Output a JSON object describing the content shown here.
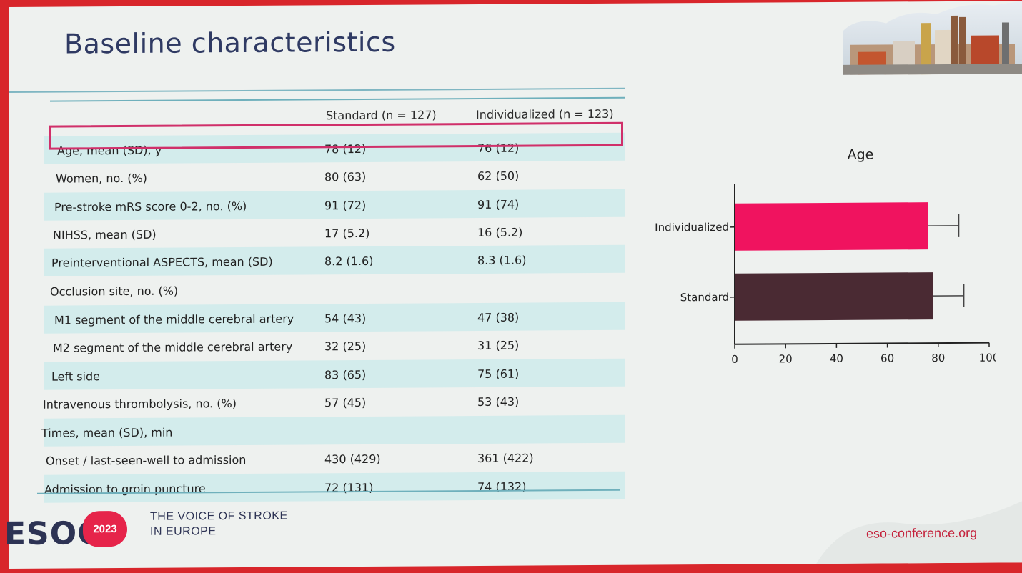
{
  "slide": {
    "title": "Baseline characteristics"
  },
  "table": {
    "headers": [
      "",
      "Standard (n = 127)",
      "Individualized (n = 123)"
    ],
    "rows": [
      {
        "label": "Age, mean (SD), y",
        "standard": "78 (12)",
        "individualized": "76 (12)",
        "shaded": true,
        "highlighted": true
      },
      {
        "label": "Women, no. (%)",
        "standard": "80 (63)",
        "individualized": "62 (50)",
        "shaded": false
      },
      {
        "label": "Pre-stroke mRS score 0-2, no. (%)",
        "standard": "91 (72)",
        "individualized": "91 (74)",
        "shaded": true
      },
      {
        "label": "NIHSS, mean (SD)",
        "standard": "17 (5.2)",
        "individualized": "16 (5.2)",
        "shaded": false
      },
      {
        "label": "Preinterventional ASPECTS, mean (SD)",
        "standard": "8.2 (1.6)",
        "individualized": "8.3 (1.6)",
        "shaded": true
      },
      {
        "label": "Occlusion site, no. (%)",
        "standard": "",
        "individualized": "",
        "shaded": false
      },
      {
        "label": "M1 segment of the middle cerebral artery",
        "standard": "54 (43)",
        "individualized": "47 (38)",
        "shaded": true
      },
      {
        "label": "M2 segment of the middle cerebral artery",
        "standard": "32 (25)",
        "individualized": "31 (25)",
        "shaded": false
      },
      {
        "label": "Left side",
        "standard": "83 (65)",
        "individualized": "75 (61)",
        "shaded": true
      },
      {
        "label": "Intravenous thrombolysis, no. (%)",
        "standard": "57 (45)",
        "individualized": "53 (43)",
        "shaded": false
      },
      {
        "label": "Times, mean (SD), min",
        "standard": "",
        "individualized": "",
        "shaded": true
      },
      {
        "label": "Onset / last-seen-well to admission",
        "standard": "430 (429)",
        "individualized": "361 (422)",
        "shaded": false
      },
      {
        "label": "Admission to groin puncture",
        "standard": "72 (131)",
        "individualized": "74 (132)",
        "shaded": true
      }
    ]
  },
  "chart_data": {
    "type": "bar",
    "orientation": "horizontal",
    "title": "Age",
    "categories": [
      "Individualized",
      "Standard"
    ],
    "values": [
      76,
      78
    ],
    "error": [
      12,
      12
    ],
    "xlim": [
      0,
      100
    ],
    "xticks": [
      0,
      20,
      40,
      60,
      80,
      100
    ],
    "colors": [
      "#f0135f",
      "#4a2a33"
    ],
    "grid": false
  },
  "footer": {
    "logo_text": "ESOC",
    "year": "2023",
    "tagline_line1": "THE VOICE OF STROKE",
    "tagline_line2": "IN EUROPE",
    "url": "eso-conference.org"
  }
}
